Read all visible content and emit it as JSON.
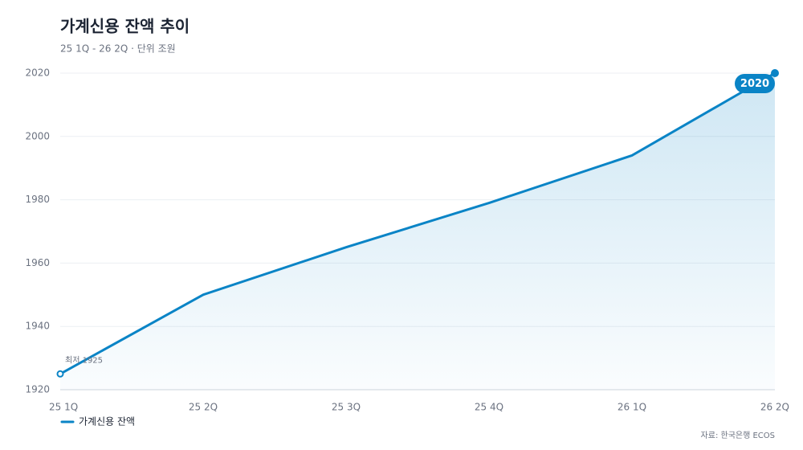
{
  "chart_data": {
    "type": "line",
    "title": "가계신용 잔액 추이",
    "subtitle": "25 1Q - 26 2Q · 단위 조원",
    "source": "자료: 한국은행 ECOS",
    "categories": [
      "25 1Q",
      "25 2Q",
      "25 3Q",
      "25 4Q",
      "26 1Q",
      "26 2Q"
    ],
    "series": [
      {
        "name": "가계신용 잔액",
        "color": "#0a84c6",
        "values": [
          1925,
          1950,
          1965,
          1979,
          1994,
          2020
        ]
      }
    ],
    "annotations": [
      "최저 1925",
      "2020"
    ],
    "ylim": [
      1920,
      2020
    ],
    "yticks": [
      1920,
      1940,
      1960,
      1980,
      2000,
      2020
    ],
    "grid": true,
    "area": true
  }
}
